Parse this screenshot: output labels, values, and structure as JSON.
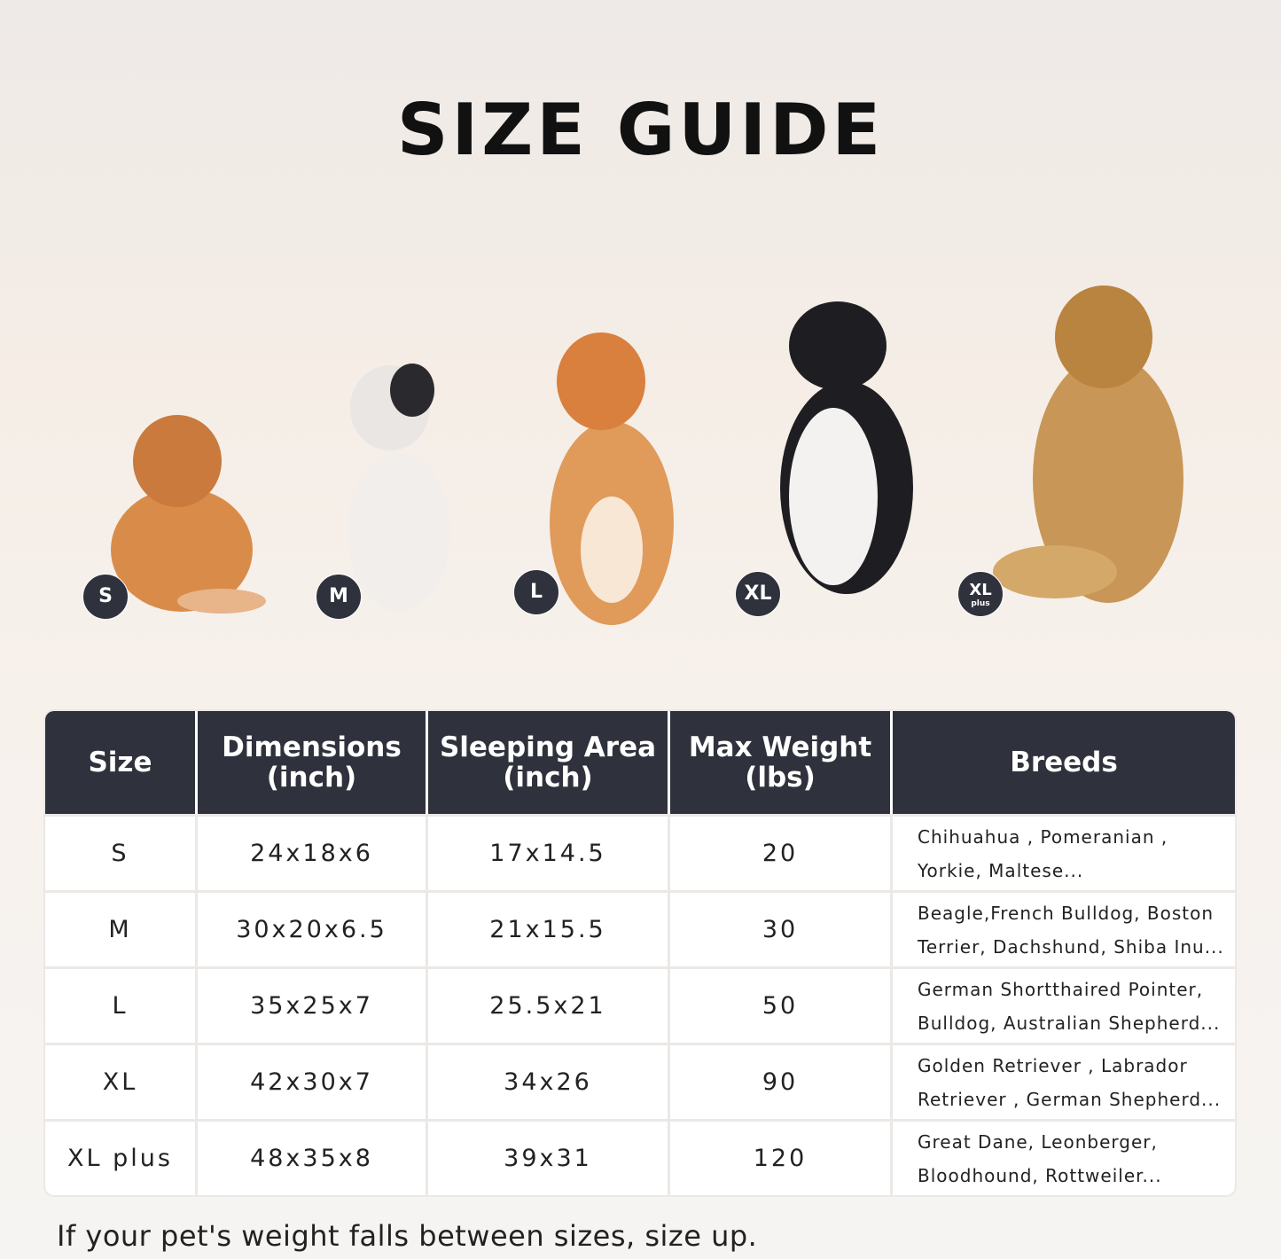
{
  "title": "SIZE GUIDE",
  "badges": [
    {
      "label": "S"
    },
    {
      "label": "M"
    },
    {
      "label": "L"
    },
    {
      "label": "XL"
    },
    {
      "label": "XL",
      "sub": "plus"
    }
  ],
  "table": {
    "headers": [
      {
        "line1": "Size",
        "line2": ""
      },
      {
        "line1": "Dimensions",
        "line2": "(inch)"
      },
      {
        "line1": "Sleeping Area",
        "line2": "(inch)"
      },
      {
        "line1": "Max Weight",
        "line2": "(lbs)"
      },
      {
        "line1": "Breeds",
        "line2": ""
      }
    ],
    "rows": [
      {
        "size": "S",
        "dimensions": "24x18x6",
        "sleeping": "17x14.5",
        "weight": "20",
        "breeds1": "Chihuahua , Pomeranian ,",
        "breeds2": "Yorkie, Maltese..."
      },
      {
        "size": "M",
        "dimensions": "30x20x6.5",
        "sleeping": "21x15.5",
        "weight": "30",
        "breeds1": "Beagle,French Bulldog, Boston",
        "breeds2": "Terrier, Dachshund, Shiba Inu..."
      },
      {
        "size": "L",
        "dimensions": "35x25x7",
        "sleeping": "25.5x21",
        "weight": "50",
        "breeds1": "German Shortthaired Pointer,",
        "breeds2": "Bulldog, Australian Shepherd..."
      },
      {
        "size": "XL",
        "dimensions": "42x30x7",
        "sleeping": "34x26",
        "weight": "90",
        "breeds1": "Golden Retriever , Labrador",
        "breeds2": "Retriever , German Shepherd..."
      },
      {
        "size": "XL plus",
        "dimensions": "48x35x8",
        "sleeping": "39x31",
        "weight": "120",
        "breeds1": "Great Dane, Leonberger,",
        "breeds2": "Bloodhound, Rottweiler..."
      }
    ]
  },
  "note": "If your pet's weight falls between sizes, size up.",
  "colors": {
    "header_bg": "#2f323c",
    "badge_bg": "#2f323c"
  }
}
